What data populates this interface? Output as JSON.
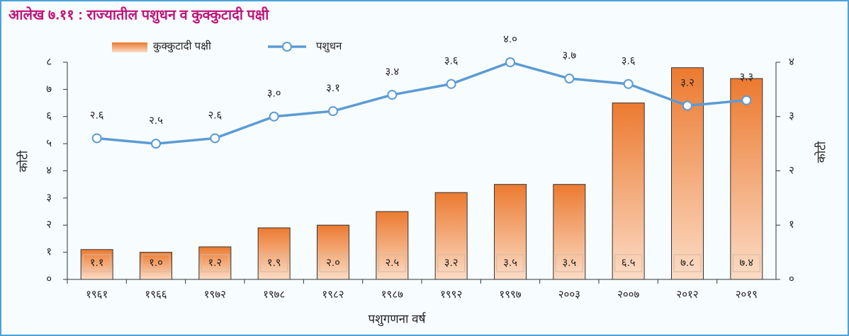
{
  "chart_data": {
    "type": "bar",
    "title": "आलेख ७.११ : राज्यातील पशुधन व कुक्कुटादी पक्षी",
    "ylabel": "कोटी",
    "y2label": "कोटी",
    "xlabel": "पशुगणना वर्ष",
    "categories": [
      "१९६१",
      "१९६६",
      "१९७२",
      "१९७८",
      "१९८२",
      "१९८७",
      "१९९२",
      "१९९७",
      "२००३",
      "२००७",
      "२०१२",
      "२०१९"
    ],
    "series": [
      {
        "name": "कुक्कुटादी पक्षी",
        "type": "bar",
        "color": "#ec7a30",
        "values": [
          1.1,
          1.0,
          1.2,
          1.9,
          2.0,
          2.5,
          3.2,
          3.5,
          3.5,
          6.5,
          7.8,
          7.4
        ],
        "value_labels": [
          "१.१",
          "१.०",
          "१.२",
          "१.९",
          "२.०",
          "२.५",
          "३.२",
          "३.५",
          "३.५",
          "६.५",
          "७.८",
          "७.४"
        ]
      },
      {
        "name": "पशुधन",
        "type": "line",
        "axis": "y2",
        "color": "#5b9bd5",
        "values": [
          2.6,
          2.5,
          2.6,
          3.0,
          3.1,
          3.4,
          3.6,
          4.0,
          3.7,
          3.6,
          3.2,
          3.3
        ],
        "value_labels": [
          "२.६",
          "२.५",
          "२.६",
          "३.०",
          "३.१",
          "३.४",
          "३.६",
          "४.०",
          "३.७",
          "३.६",
          "३.२",
          "३.३"
        ]
      }
    ],
    "ylim": [
      0,
      8
    ],
    "yticks": [
      {
        "value": 0,
        "label": "०"
      },
      {
        "value": 1,
        "label": "१"
      },
      {
        "value": 2,
        "label": "२"
      },
      {
        "value": 3,
        "label": "३"
      },
      {
        "value": 4,
        "label": "४"
      },
      {
        "value": 5,
        "label": "५"
      },
      {
        "value": 6,
        "label": "६"
      },
      {
        "value": 7,
        "label": "७"
      },
      {
        "value": 8,
        "label": "८"
      }
    ],
    "y2lim": [
      0,
      4
    ],
    "y2ticks": [
      {
        "value": 0,
        "label": "०"
      },
      {
        "value": 1,
        "label": "१"
      },
      {
        "value": 2,
        "label": "२"
      },
      {
        "value": 3,
        "label": "३"
      },
      {
        "value": 4,
        "label": "४"
      }
    ],
    "legend": "top"
  }
}
